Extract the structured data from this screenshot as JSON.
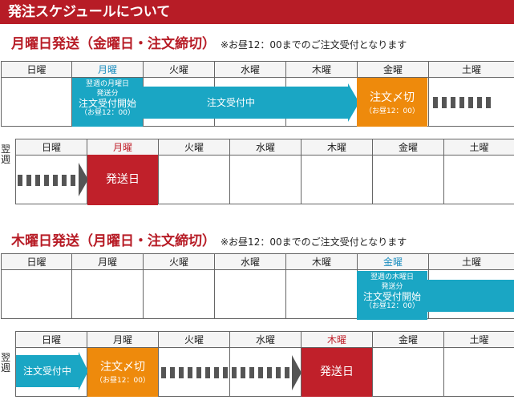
{
  "banner": {
    "title": "発注スケジュールについて"
  },
  "section1": {
    "title": "月曜日発送（金曜日・注文締切）",
    "note": "※お昼12：00までのご注文受付となります",
    "week1": {
      "days": [
        "日曜",
        "月曜",
        "火曜",
        "水曜",
        "木曜",
        "金曜",
        "土曜"
      ],
      "start": {
        "line1": "翌週の月曜日",
        "line2": "発送分",
        "line3": "注文受付開始",
        "line4": "（お昼12：00）"
      },
      "receiving": "注文受付中",
      "deadline": {
        "label": "注文〆切",
        "time": "（お昼12：00）"
      }
    },
    "week2": {
      "side_label": "翌週",
      "days": [
        "日曜",
        "月曜",
        "火曜",
        "水曜",
        "木曜",
        "金曜",
        "土曜"
      ],
      "ship": "発送日"
    }
  },
  "section2": {
    "title": "木曜日発送（月曜日・注文締切）",
    "note": "※お昼12：00までのご注文受付となります",
    "week1": {
      "days": [
        "日曜",
        "月曜",
        "火曜",
        "水曜",
        "木曜",
        "金曜",
        "土曜"
      ],
      "start": {
        "line1": "翌週の木曜日",
        "line2": "発送分",
        "line3": "注文受付開始",
        "line4": "（お昼12：00）"
      }
    },
    "week2": {
      "side_label": "翌週",
      "days": [
        "日曜",
        "月曜",
        "火曜",
        "水曜",
        "木曜",
        "金曜",
        "土曜"
      ],
      "receiving": "注文受付中",
      "deadline": {
        "label": "注文〆切",
        "time": "（お昼12：00）"
      },
      "ship": "発送日"
    }
  },
  "colors": {
    "banner": "#b71c26",
    "teal": "#1aa6c4",
    "orange": "#ee8a0c",
    "red": "#c0202a"
  }
}
